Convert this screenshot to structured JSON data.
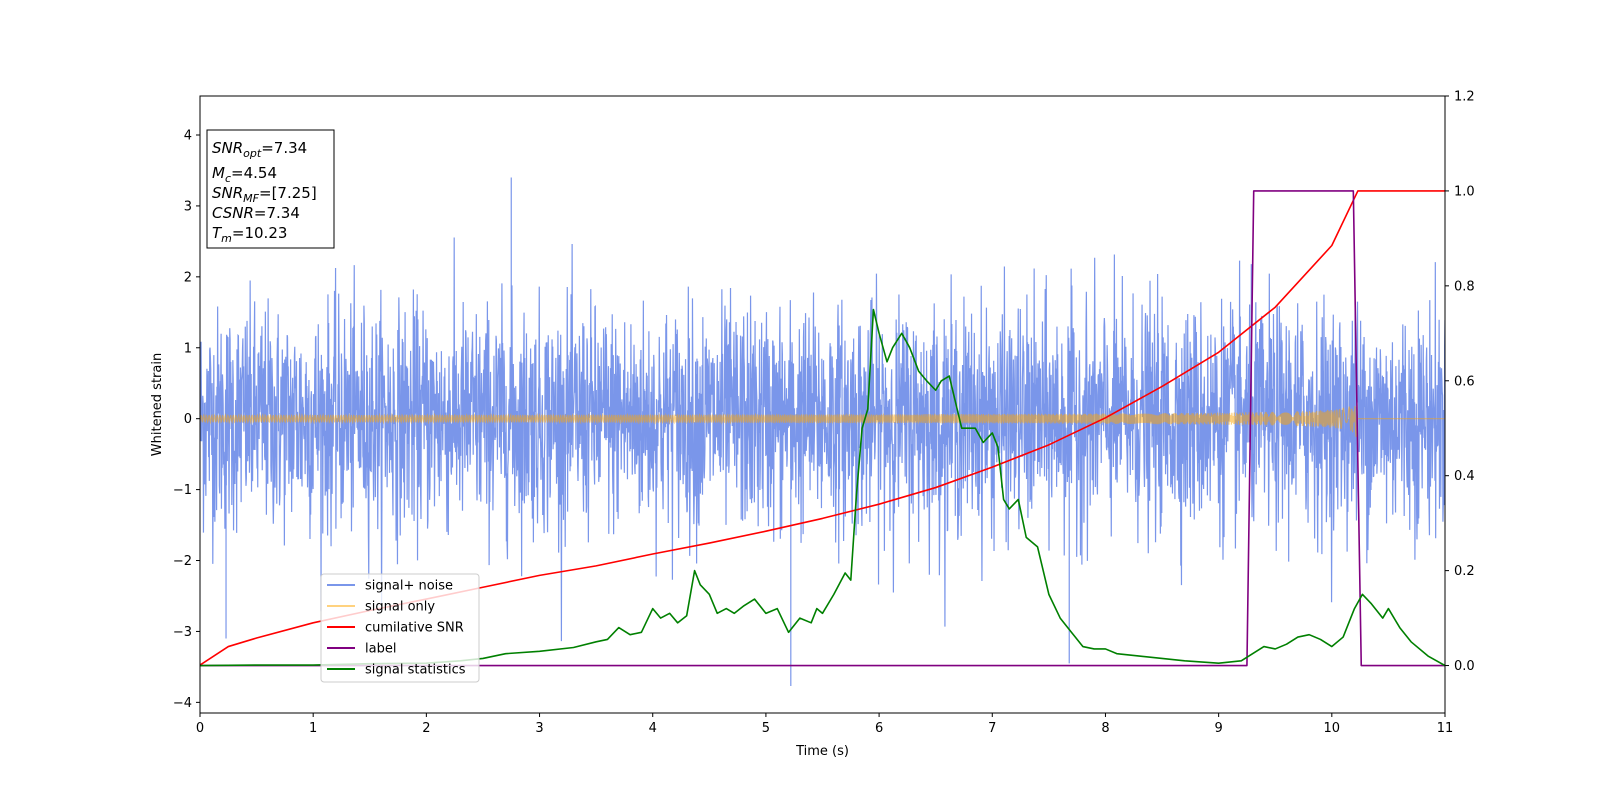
{
  "chart_data": {
    "type": "line",
    "xlabel": "Time (s)",
    "ylabel": "Whitened strain",
    "xlim": [
      0,
      11
    ],
    "ylim_left": [
      -4.15,
      4.55
    ],
    "ylim_right": [
      -0.1,
      1.2
    ],
    "x_ticks": [
      "0",
      "1",
      "2",
      "3",
      "4",
      "5",
      "6",
      "7",
      "8",
      "9",
      "10",
      "11"
    ],
    "y_ticks_left": [
      "4",
      "3",
      "2",
      "1",
      "0",
      "−1",
      "−2",
      "−3",
      "−4"
    ],
    "y_ticks_right": [
      "1.2",
      "1.0",
      "0.8",
      "0.6",
      "0.4",
      "0.2",
      "0.0"
    ],
    "grid": false,
    "legend_placement": "lower-left",
    "info_box": {
      "lines": [
        {
          "base": "SNR",
          "sub": "opt",
          "rest": "=7.34"
        },
        {
          "base": "M",
          "sub": "c",
          "rest": "=4.54"
        },
        {
          "base": "SNR",
          "sub": "MF",
          "rest": "=[7.25]"
        },
        {
          "base": "CSNR",
          "sub": "",
          "rest": "=7.34"
        },
        {
          "base": "T",
          "sub": "m",
          "rest": "=10.23"
        }
      ]
    },
    "series": [
      {
        "name": "signal+ noise",
        "axis": "left",
        "color": "#4169e1",
        "alpha": 0.7,
        "kind": "noise",
        "time_range": [
          0,
          11
        ],
        "sigma": 0.78,
        "notable_extremes": [
          [
            2.75,
            3.4
          ],
          [
            5.22,
            -3.77
          ],
          [
            0.23,
            -3.1
          ],
          [
            7.68,
            -3.45
          ]
        ]
      },
      {
        "name": "signal only",
        "axis": "left",
        "color": "#ffa500",
        "alpha": 0.5,
        "kind": "chirp",
        "coalescence_time": 10.23,
        "amplitude_at_start": 0.05,
        "amplitude_at_peak": 0.58
      },
      {
        "name": "cumilative SNR",
        "axis": "right",
        "color": "#ff0000",
        "x": [
          0,
          0.25,
          0.5,
          1,
          1.5,
          2,
          2.5,
          3,
          3.5,
          4,
          4.5,
          5,
          5.5,
          6,
          6.5,
          7,
          7.5,
          8,
          8.5,
          9,
          9.5,
          10,
          10.23,
          11
        ],
        "y": [
          0.001,
          0.04,
          0.058,
          0.09,
          0.116,
          0.14,
          0.165,
          0.19,
          0.21,
          0.235,
          0.258,
          0.283,
          0.31,
          0.34,
          0.375,
          0.418,
          0.465,
          0.522,
          0.588,
          0.66,
          0.755,
          0.885,
          1.0,
          1.0
        ]
      },
      {
        "name": "label",
        "axis": "right",
        "color": "#800080",
        "x": [
          0,
          9.25,
          9.31,
          10.19,
          10.26,
          11
        ],
        "y": [
          0,
          0,
          1,
          1,
          0,
          0
        ]
      },
      {
        "name": "signal statistics",
        "axis": "right",
        "color": "#008000",
        "x": [
          0,
          0.5,
          1,
          1.5,
          2,
          2.3,
          2.5,
          2.7,
          3,
          3.3,
          3.5,
          3.6,
          3.7,
          3.8,
          3.9,
          4.0,
          4.07,
          4.15,
          4.22,
          4.3,
          4.37,
          4.42,
          4.5,
          4.57,
          4.65,
          4.72,
          4.8,
          4.9,
          5.0,
          5.1,
          5.2,
          5.3,
          5.4,
          5.45,
          5.5,
          5.6,
          5.7,
          5.75,
          5.8,
          5.85,
          5.9,
          5.95,
          6.0,
          6.07,
          6.12,
          6.2,
          6.27,
          6.35,
          6.42,
          6.5,
          6.55,
          6.62,
          6.68,
          6.73,
          6.78,
          6.85,
          6.92,
          7.0,
          7.05,
          7.1,
          7.15,
          7.23,
          7.3,
          7.4,
          7.5,
          7.6,
          7.7,
          7.8,
          7.9,
          8.0,
          8.1,
          8.3,
          8.5,
          8.7,
          9.0,
          9.2,
          9.3,
          9.4,
          9.5,
          9.6,
          9.7,
          9.8,
          9.9,
          10.0,
          10.1,
          10.2,
          10.27,
          10.35,
          10.45,
          10.5,
          10.6,
          10.7,
          10.85,
          11.0
        ],
        "y": [
          0.0,
          0.001,
          0.001,
          0.004,
          0.005,
          0.01,
          0.015,
          0.025,
          0.03,
          0.038,
          0.05,
          0.055,
          0.08,
          0.065,
          0.07,
          0.12,
          0.1,
          0.11,
          0.09,
          0.105,
          0.2,
          0.17,
          0.15,
          0.11,
          0.12,
          0.11,
          0.125,
          0.14,
          0.11,
          0.12,
          0.07,
          0.1,
          0.09,
          0.12,
          0.11,
          0.15,
          0.195,
          0.18,
          0.36,
          0.5,
          0.54,
          0.75,
          0.7,
          0.64,
          0.67,
          0.7,
          0.67,
          0.62,
          0.6,
          0.58,
          0.6,
          0.61,
          0.55,
          0.5,
          0.5,
          0.5,
          0.47,
          0.49,
          0.46,
          0.35,
          0.33,
          0.35,
          0.27,
          0.25,
          0.15,
          0.1,
          0.07,
          0.04,
          0.035,
          0.035,
          0.025,
          0.02,
          0.015,
          0.01,
          0.005,
          0.01,
          0.025,
          0.04,
          0.035,
          0.045,
          0.06,
          0.065,
          0.055,
          0.04,
          0.06,
          0.12,
          0.15,
          0.13,
          0.1,
          0.12,
          0.08,
          0.05,
          0.02,
          0.0
        ]
      }
    ]
  }
}
